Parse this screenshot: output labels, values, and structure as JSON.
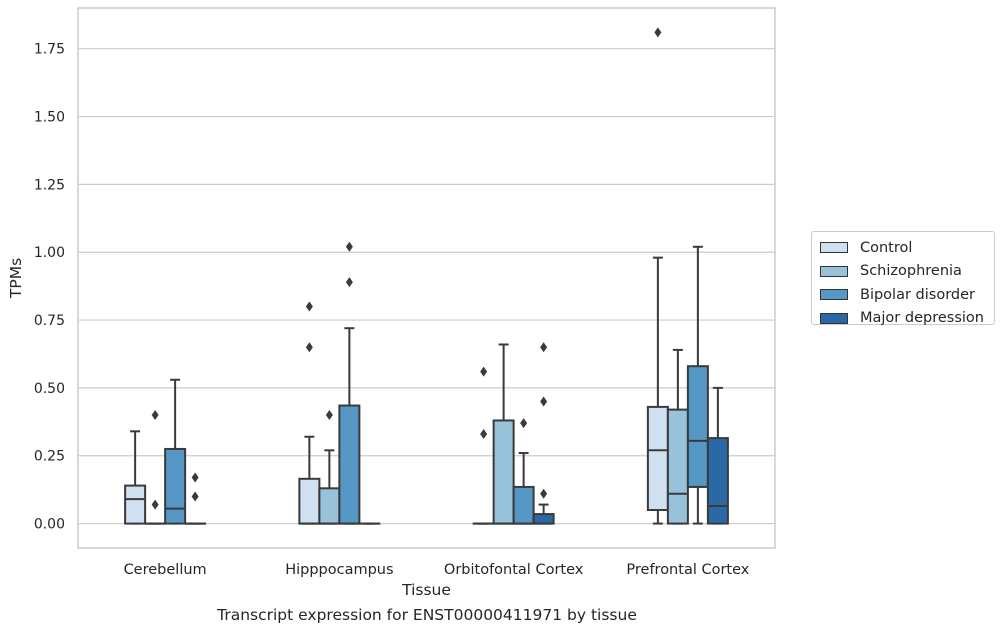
{
  "chart_data": {
    "type": "box",
    "xlabel": "Tissue",
    "ylabel": "TPMs",
    "ylim": [
      -0.09,
      1.9
    ],
    "yticks": [
      "0.00",
      "0.25",
      "0.50",
      "0.75",
      "1.00",
      "1.25",
      "1.50",
      "1.75"
    ],
    "categories": [
      "Cerebellum",
      "Hipppocampus",
      "Orbitofontal Cortex",
      "Prefrontal Cortex"
    ],
    "grid": "horizontal",
    "legend_position": "right",
    "series": [
      {
        "name": "Control",
        "color": "#cfe0f0",
        "boxes": [
          {
            "whislo": 0.0,
            "q1": 0.0,
            "med": 0.09,
            "q3": 0.14,
            "whishi": 0.34,
            "fliers": []
          },
          {
            "whislo": 0.0,
            "q1": 0.0,
            "med": 0.0,
            "q3": 0.165,
            "whishi": 0.32,
            "fliers": [
              0.65,
              0.8
            ]
          },
          {
            "whislo": 0.0,
            "q1": 0.0,
            "med": 0.0,
            "q3": 0.0,
            "whishi": 0.0,
            "fliers": [
              0.33,
              0.56
            ]
          },
          {
            "whislo": 0.0,
            "q1": 0.05,
            "med": 0.27,
            "q3": 0.43,
            "whishi": 0.98,
            "fliers": [
              1.81
            ]
          }
        ]
      },
      {
        "name": "Schizophrenia",
        "color": "#98c1da",
        "boxes": [
          {
            "whislo": 0.0,
            "q1": 0.0,
            "med": 0.0,
            "q3": 0.0,
            "whishi": 0.0,
            "fliers": [
              0.07,
              0.4
            ]
          },
          {
            "whislo": 0.0,
            "q1": 0.0,
            "med": 0.0,
            "q3": 0.13,
            "whishi": 0.27,
            "fliers": [
              0.4
            ]
          },
          {
            "whislo": 0.0,
            "q1": 0.0,
            "med": 0.0,
            "q3": 0.38,
            "whishi": 0.66,
            "fliers": []
          },
          {
            "whislo": 0.0,
            "q1": 0.0,
            "med": 0.11,
            "q3": 0.42,
            "whishi": 0.64,
            "fliers": []
          }
        ]
      },
      {
        "name": "Bipolar disorder",
        "color": "#5597c5",
        "boxes": [
          {
            "whislo": 0.0,
            "q1": 0.0,
            "med": 0.055,
            "q3": 0.275,
            "whishi": 0.53,
            "fliers": []
          },
          {
            "whislo": 0.0,
            "q1": 0.0,
            "med": 0.0,
            "q3": 0.435,
            "whishi": 0.72,
            "fliers": [
              0.89,
              1.02
            ]
          },
          {
            "whislo": 0.0,
            "q1": 0.0,
            "med": 0.0,
            "q3": 0.135,
            "whishi": 0.26,
            "fliers": [
              0.37
            ]
          },
          {
            "whislo": 0.0,
            "q1": 0.135,
            "med": 0.305,
            "q3": 0.58,
            "whishi": 1.02,
            "fliers": []
          }
        ]
      },
      {
        "name": "Major depression",
        "color": "#2a69a6",
        "boxes": [
          {
            "whislo": 0.0,
            "q1": 0.0,
            "med": 0.0,
            "q3": 0.0,
            "whishi": 0.0,
            "fliers": [
              0.1,
              0.17
            ]
          },
          {
            "whislo": 0.0,
            "q1": 0.0,
            "med": 0.0,
            "q3": 0.0,
            "whishi": 0.0,
            "fliers": []
          },
          {
            "whislo": 0.0,
            "q1": 0.0,
            "med": 0.0,
            "q3": 0.035,
            "whishi": 0.07,
            "fliers": [
              0.11,
              0.45,
              0.65
            ]
          },
          {
            "whislo": 0.0,
            "q1": 0.0,
            "med": 0.065,
            "q3": 0.315,
            "whishi": 0.5,
            "fliers": []
          }
        ]
      }
    ]
  },
  "caption": "Transcript expression for ENST00000411971 by tissue"
}
